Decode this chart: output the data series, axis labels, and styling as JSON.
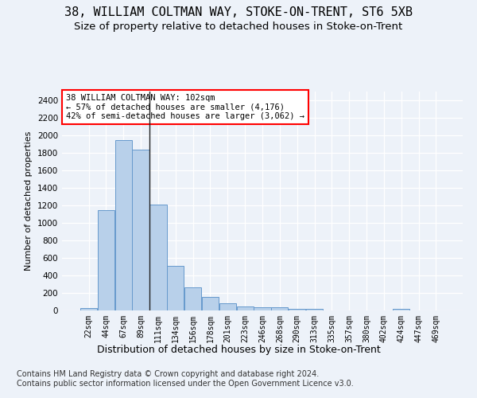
{
  "title": "38, WILLIAM COLTMAN WAY, STOKE-ON-TRENT, ST6 5XB",
  "subtitle": "Size of property relative to detached houses in Stoke-on-Trent",
  "xlabel": "Distribution of detached houses by size in Stoke-on-Trent",
  "ylabel": "Number of detached properties",
  "bar_labels": [
    "22sqm",
    "44sqm",
    "67sqm",
    "89sqm",
    "111sqm",
    "134sqm",
    "156sqm",
    "178sqm",
    "201sqm",
    "223sqm",
    "246sqm",
    "268sqm",
    "290sqm",
    "313sqm",
    "335sqm",
    "357sqm",
    "380sqm",
    "402sqm",
    "424sqm",
    "447sqm",
    "469sqm"
  ],
  "bar_values": [
    25,
    1150,
    1950,
    1840,
    1210,
    510,
    265,
    155,
    80,
    50,
    40,
    35,
    20,
    15,
    0,
    0,
    0,
    0,
    20,
    0,
    0
  ],
  "bar_color": "#b8d0ea",
  "bar_edge_color": "#6699cc",
  "property_line_index": 4,
  "annotation_text": "38 WILLIAM COLTMAN WAY: 102sqm\n← 57% of detached houses are smaller (4,176)\n42% of semi-detached houses are larger (3,062) →",
  "annotation_box_color": "white",
  "annotation_box_edge_color": "red",
  "ylim": [
    0,
    2500
  ],
  "yticks": [
    0,
    200,
    400,
    600,
    800,
    1000,
    1200,
    1400,
    1600,
    1800,
    2000,
    2200,
    2400
  ],
  "bg_color": "#edf2f9",
  "plot_bg_color": "#edf2f9",
  "footer_text": "Contains HM Land Registry data © Crown copyright and database right 2024.\nContains public sector information licensed under the Open Government Licence v3.0.",
  "title_fontsize": 11,
  "subtitle_fontsize": 9.5,
  "xlabel_fontsize": 9,
  "ylabel_fontsize": 8,
  "footer_fontsize": 7
}
